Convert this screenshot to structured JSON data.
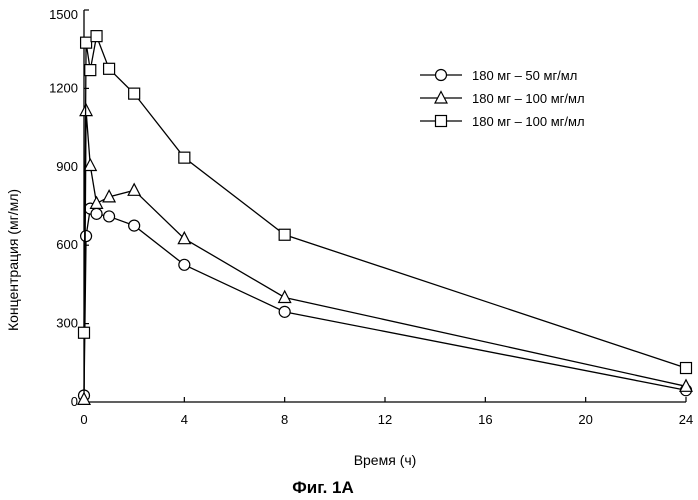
{
  "caption": "Фиг. 1А",
  "chart_data": {
    "type": "line",
    "xlabel": "Время (ч)",
    "ylabel": "Концентрация (мг/мл)",
    "xlim": [
      0,
      24
    ],
    "ylim": [
      0,
      1500
    ],
    "xticks": [
      0,
      4,
      8,
      12,
      16,
      20,
      24
    ],
    "yticks": [
      0,
      300,
      600,
      900,
      1200,
      1500
    ],
    "grid": false,
    "legend_position": "top-right",
    "series": [
      {
        "name": "180 мг – 50 мг/мл",
        "marker": "circle",
        "x": [
          0,
          0.083,
          0.25,
          0.5,
          1,
          2,
          4,
          8,
          24
        ],
        "y": [
          25,
          635,
          740,
          720,
          710,
          675,
          525,
          345,
          45
        ]
      },
      {
        "name": "180 мг – 100 мг/мл",
        "marker": "triangle",
        "x": [
          0,
          0.083,
          0.25,
          0.5,
          1,
          2,
          4,
          8,
          24
        ],
        "y": [
          10,
          1115,
          905,
          760,
          785,
          810,
          625,
          400,
          60
        ]
      },
      {
        "name": "180 мг – 100 мг/мл",
        "marker": "square",
        "x": [
          0,
          0.083,
          0.25,
          0.5,
          1,
          2,
          4,
          8,
          24
        ],
        "y": [
          265,
          1375,
          1270,
          1400,
          1275,
          1180,
          935,
          640,
          130
        ]
      }
    ]
  }
}
